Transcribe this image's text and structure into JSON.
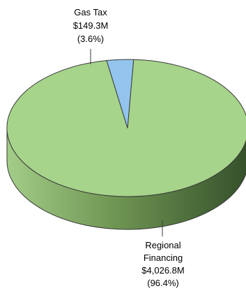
{
  "chart_data": {
    "type": "pie",
    "style": "3d",
    "title": "",
    "slices": [
      {
        "name": "Gas Tax",
        "display_value": "$149.3M",
        "display_percent": "(3.6%)",
        "value": 149.3,
        "percent": 3.6,
        "color": "#92c4ee",
        "side_color": "#5f8fbf"
      },
      {
        "name": "Regional Financing",
        "name_lines": [
          "Regional",
          "Financing"
        ],
        "display_value": "$4,026.8M",
        "display_percent": "(96.4%)",
        "value": 4026.8,
        "percent": 96.4,
        "color": "#a6d48a",
        "side_color": "#6e9a52"
      }
    ],
    "legend": "none",
    "outline_color": "#3a3a3a"
  }
}
